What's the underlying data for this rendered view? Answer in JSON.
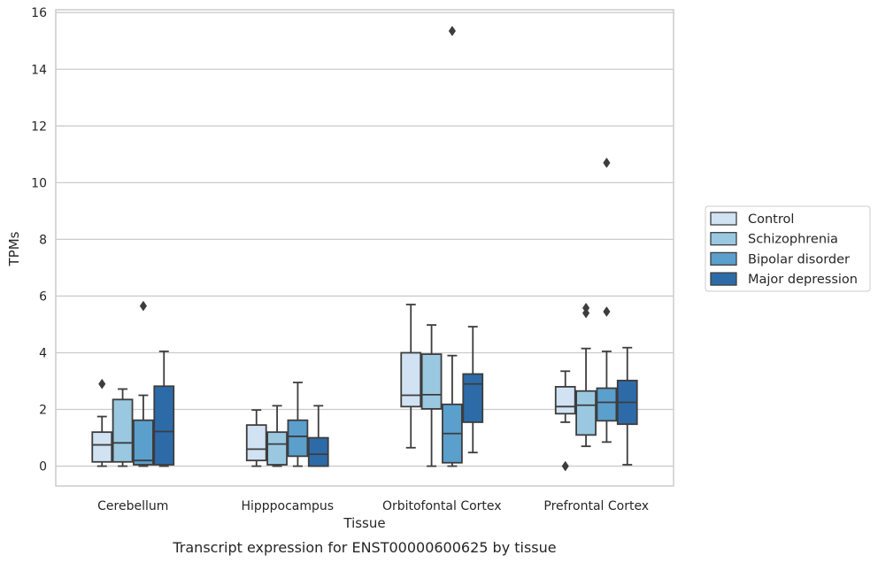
{
  "caption": "Transcript expression for ENST00000600625 by tissue",
  "chart_data": {
    "type": "boxplot",
    "xlabel": "Tissue",
    "ylabel": "TPMs",
    "ylim": [
      -0.7,
      16.1
    ],
    "yticks": [
      0,
      2,
      4,
      6,
      8,
      10,
      12,
      14,
      16
    ],
    "grid": "horizontal",
    "legend_position": "right",
    "categories": [
      "Cerebellum",
      "Hipppocampus",
      "Orbitofontal Cortex",
      "Prefrontal Cortex"
    ],
    "series": [
      {
        "name": "Control",
        "color": "#d1e2f2",
        "boxes": [
          {
            "whislo": 0.0,
            "q1": 0.15,
            "med": 0.75,
            "q3": 1.2,
            "whishi": 1.75,
            "fliers": [
              2.9
            ]
          },
          {
            "whislo": 0.0,
            "q1": 0.2,
            "med": 0.6,
            "q3": 1.45,
            "whishi": 1.98,
            "fliers": []
          },
          {
            "whislo": 0.65,
            "q1": 2.1,
            "med": 2.5,
            "q3": 4.0,
            "whishi": 5.7,
            "fliers": []
          },
          {
            "whislo": 1.55,
            "q1": 1.85,
            "med": 2.1,
            "q3": 2.8,
            "whishi": 3.35,
            "fliers": [
              0.0
            ]
          }
        ]
      },
      {
        "name": "Schizophrenia",
        "color": "#9ac8e0",
        "boxes": [
          {
            "whislo": 0.0,
            "q1": 0.15,
            "med": 0.82,
            "q3": 2.35,
            "whishi": 2.72,
            "fliers": []
          },
          {
            "whislo": 0.0,
            "q1": 0.05,
            "med": 0.78,
            "q3": 1.2,
            "whishi": 2.13,
            "fliers": []
          },
          {
            "whislo": 0.0,
            "q1": 2.02,
            "med": 2.52,
            "q3": 3.95,
            "whishi": 4.98,
            "fliers": []
          },
          {
            "whislo": 0.7,
            "q1": 1.1,
            "med": 2.15,
            "q3": 2.65,
            "whishi": 4.15,
            "fliers": [
              5.4,
              5.58
            ]
          }
        ]
      },
      {
        "name": "Bipolar disorder",
        "color": "#5b9fcc",
        "boxes": [
          {
            "whislo": 0.0,
            "q1": 0.05,
            "med": 0.2,
            "q3": 1.62,
            "whishi": 2.5,
            "fliers": [
              5.65
            ]
          },
          {
            "whislo": 0.0,
            "q1": 0.35,
            "med": 1.05,
            "q3": 1.62,
            "whishi": 2.95,
            "fliers": []
          },
          {
            "whislo": 0.0,
            "q1": 0.12,
            "med": 1.15,
            "q3": 2.18,
            "whishi": 3.9,
            "fliers": [
              15.35
            ]
          },
          {
            "whislo": 0.85,
            "q1": 1.6,
            "med": 2.25,
            "q3": 2.75,
            "whishi": 4.05,
            "fliers": [
              10.7,
              5.45
            ]
          }
        ]
      },
      {
        "name": "Major depression",
        "color": "#2d6ba8",
        "boxes": [
          {
            "whislo": 0.0,
            "q1": 0.05,
            "med": 1.22,
            "q3": 2.82,
            "whishi": 4.05,
            "fliers": []
          },
          {
            "whislo": 0.0,
            "q1": 0.0,
            "med": 0.42,
            "q3": 1.0,
            "whishi": 2.13,
            "fliers": []
          },
          {
            "whislo": 0.48,
            "q1": 1.55,
            "med": 2.9,
            "q3": 3.25,
            "whishi": 4.92,
            "fliers": []
          },
          {
            "whislo": 0.05,
            "q1": 1.48,
            "med": 2.25,
            "q3": 3.02,
            "whishi": 4.18,
            "fliers": []
          }
        ]
      }
    ]
  }
}
